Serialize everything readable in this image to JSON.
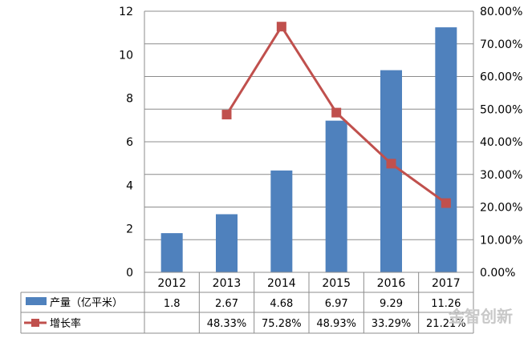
{
  "chart_data": {
    "type": "bar",
    "categories": [
      "2012",
      "2013",
      "2014",
      "2015",
      "2016",
      "2017"
    ],
    "series": [
      {
        "name": "产量（亿平米）",
        "chart": "bar",
        "axis": "left",
        "color": "#4f81bd",
        "values": [
          1.8,
          2.67,
          4.68,
          6.97,
          9.29,
          11.26
        ],
        "labels": [
          "1.8",
          "2.67",
          "4.68",
          "6.97",
          "9.29",
          "11.26"
        ]
      },
      {
        "name": "增长率",
        "chart": "line",
        "axis": "right",
        "color": "#c0504d",
        "marker": "square",
        "values": [
          null,
          48.33,
          75.28,
          48.93,
          33.29,
          21.21
        ],
        "labels": [
          "",
          "48.33%",
          "75.28%",
          "48.93%",
          "33.29%",
          "21.21%"
        ]
      }
    ],
    "y_left": {
      "ylim": [
        0,
        12
      ],
      "ticks": [
        "0",
        "2",
        "4",
        "6",
        "8",
        "10",
        "12"
      ]
    },
    "y_right": {
      "ylim": [
        0,
        80
      ],
      "ticks": [
        "0.00%",
        "10.00%",
        "20.00%",
        "30.00%",
        "40.00%",
        "50.00%",
        "60.00%",
        "70.00%",
        "80.00%"
      ]
    },
    "grid": true,
    "legend": "data-table-below"
  },
  "watermark": "金智创新"
}
